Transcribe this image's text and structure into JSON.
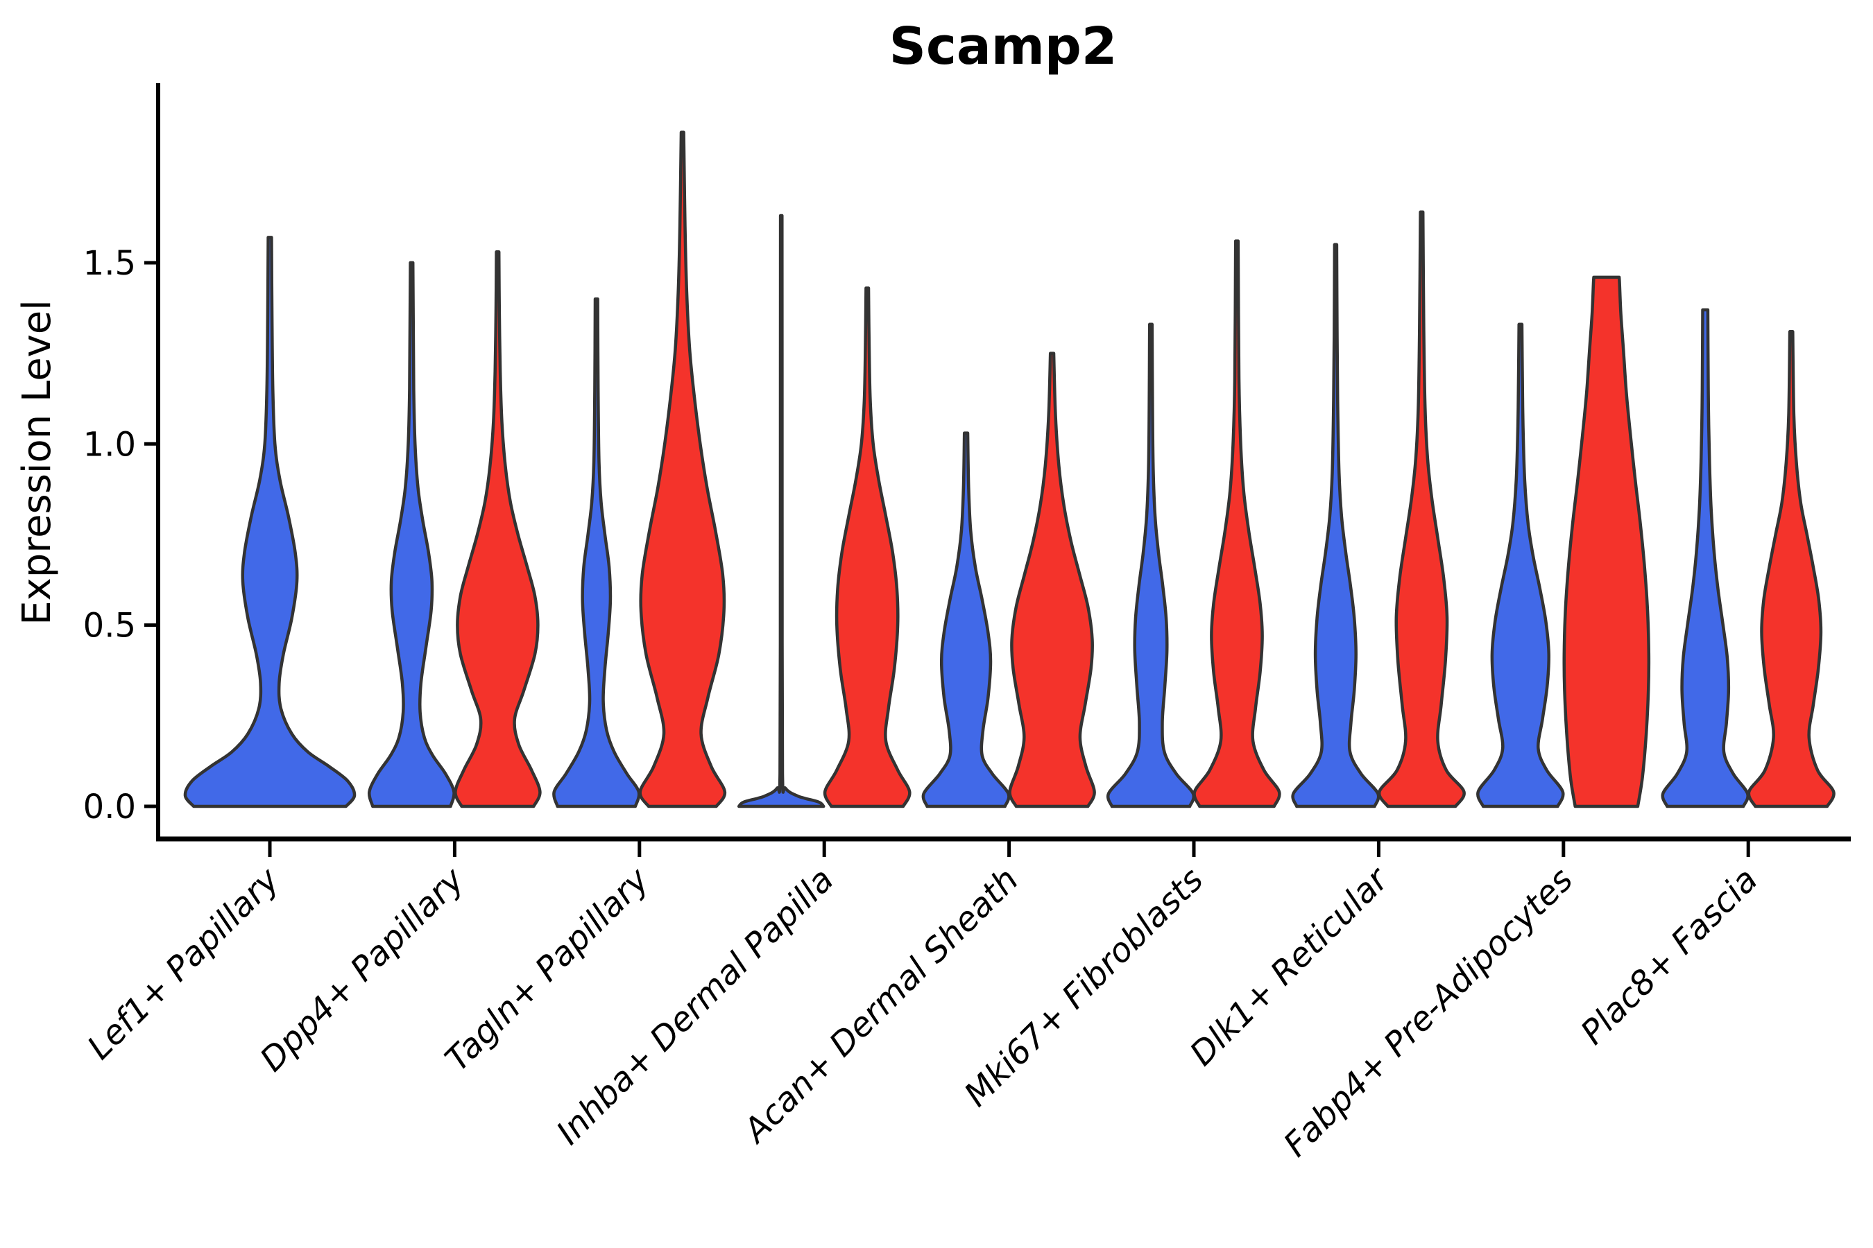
{
  "chart_data": {
    "type": "violin",
    "title": "Scamp2",
    "ylabel": "Expression Level",
    "xlabel": "",
    "ylim": [
      -0.09,
      1.99
    ],
    "yticks": [
      0.0,
      0.5,
      1.0,
      1.5
    ],
    "ytick_labels": [
      "0.0",
      "0.5",
      "1.0",
      "1.5"
    ],
    "grid": false,
    "legend": "none",
    "categories": [
      "Lef1+ Papillary",
      "Dpp4+ Papillary",
      "Tagln+ Papillary",
      "Inhba+ Dermal Papilla",
      "Acan+ Dermal Sheath",
      "Mki67+ Fibroblasts",
      "Dlk1+ Reticular",
      "Fabp4+ Pre-Adipocytes",
      "Plac8+ Fascia"
    ],
    "colors": {
      "blue": "#4169E8",
      "red": "#F4332B",
      "outline": "#333333"
    },
    "series": [
      {
        "name": "group-blue",
        "color": "#4169E8",
        "max_expression": [
          1.57,
          1.5,
          1.4,
          1.63,
          1.03,
          1.33,
          1.55,
          1.33,
          1.37
        ]
      },
      {
        "name": "group-red",
        "color": "#F4332B",
        "max_expression": [
          null,
          1.53,
          1.86,
          1.43,
          1.25,
          1.56,
          1.64,
          1.46,
          1.31
        ]
      }
    ],
    "violins": [
      {
        "category": 0,
        "group": "blue",
        "side": "single",
        "width_scale": 2,
        "tip": 1.57,
        "blunt": false,
        "profile": [
          [
            0,
            0.9
          ],
          [
            0.03,
            1.0
          ],
          [
            0.07,
            0.92
          ],
          [
            0.11,
            0.7
          ],
          [
            0.15,
            0.45
          ],
          [
            0.2,
            0.26
          ],
          [
            0.27,
            0.13
          ],
          [
            0.34,
            0.11
          ],
          [
            0.42,
            0.16
          ],
          [
            0.52,
            0.26
          ],
          [
            0.62,
            0.32
          ],
          [
            0.7,
            0.3
          ],
          [
            0.8,
            0.22
          ],
          [
            0.9,
            0.12
          ],
          [
            1.0,
            0.06
          ],
          [
            1.15,
            0.035
          ],
          [
            1.35,
            0.025
          ],
          [
            1.57,
            0.02
          ]
        ]
      },
      {
        "category": 1,
        "group": "blue",
        "side": "left",
        "width_scale": 1,
        "tip": 1.5,
        "blunt": false,
        "profile": [
          [
            0,
            0.92
          ],
          [
            0.04,
            1.0
          ],
          [
            0.09,
            0.8
          ],
          [
            0.14,
            0.5
          ],
          [
            0.19,
            0.3
          ],
          [
            0.26,
            0.2
          ],
          [
            0.34,
            0.22
          ],
          [
            0.44,
            0.34
          ],
          [
            0.54,
            0.46
          ],
          [
            0.62,
            0.48
          ],
          [
            0.7,
            0.4
          ],
          [
            0.79,
            0.26
          ],
          [
            0.88,
            0.15
          ],
          [
            1.0,
            0.08
          ],
          [
            1.15,
            0.05
          ],
          [
            1.32,
            0.04
          ],
          [
            1.5,
            0.03
          ]
        ]
      },
      {
        "category": 1,
        "group": "red",
        "side": "right",
        "width_scale": 1,
        "tip": 1.53,
        "blunt": false,
        "profile": [
          [
            0,
            0.85
          ],
          [
            0.04,
            1.0
          ],
          [
            0.1,
            0.8
          ],
          [
            0.17,
            0.5
          ],
          [
            0.24,
            0.4
          ],
          [
            0.32,
            0.62
          ],
          [
            0.42,
            0.88
          ],
          [
            0.5,
            0.95
          ],
          [
            0.58,
            0.88
          ],
          [
            0.66,
            0.7
          ],
          [
            0.75,
            0.48
          ],
          [
            0.84,
            0.3
          ],
          [
            0.94,
            0.18
          ],
          [
            1.06,
            0.1
          ],
          [
            1.2,
            0.06
          ],
          [
            1.37,
            0.04
          ],
          [
            1.53,
            0.03
          ]
        ]
      },
      {
        "category": 2,
        "group": "blue",
        "side": "left",
        "width_scale": 1,
        "tip": 1.4,
        "blunt": false,
        "profile": [
          [
            0,
            0.92
          ],
          [
            0.04,
            1.0
          ],
          [
            0.09,
            0.72
          ],
          [
            0.15,
            0.42
          ],
          [
            0.21,
            0.24
          ],
          [
            0.29,
            0.16
          ],
          [
            0.38,
            0.2
          ],
          [
            0.48,
            0.28
          ],
          [
            0.57,
            0.33
          ],
          [
            0.66,
            0.3
          ],
          [
            0.75,
            0.2
          ],
          [
            0.84,
            0.11
          ],
          [
            0.95,
            0.06
          ],
          [
            1.15,
            0.04
          ],
          [
            1.4,
            0.03
          ]
        ]
      },
      {
        "category": 2,
        "group": "red",
        "side": "right",
        "width_scale": 1,
        "tip": 1.86,
        "blunt": false,
        "profile": [
          [
            0,
            0.8
          ],
          [
            0.04,
            1.0
          ],
          [
            0.11,
            0.68
          ],
          [
            0.2,
            0.44
          ],
          [
            0.3,
            0.6
          ],
          [
            0.42,
            0.86
          ],
          [
            0.54,
            0.98
          ],
          [
            0.64,
            0.95
          ],
          [
            0.76,
            0.78
          ],
          [
            0.88,
            0.58
          ],
          [
            1.0,
            0.42
          ],
          [
            1.13,
            0.28
          ],
          [
            1.26,
            0.17
          ],
          [
            1.42,
            0.1
          ],
          [
            1.6,
            0.06
          ],
          [
            1.86,
            0.03
          ]
        ]
      },
      {
        "category": 3,
        "group": "blue",
        "side": "left",
        "width_scale": 1,
        "tip": 1.63,
        "blunt": false,
        "profile": [
          [
            0,
            1.0
          ],
          [
            0.012,
            0.88
          ],
          [
            0.028,
            0.4
          ],
          [
            0.05,
            0.1
          ],
          [
            0.09,
            0.03
          ],
          [
            0.6,
            0.022
          ],
          [
            1.2,
            0.02
          ],
          [
            1.63,
            0.018
          ]
        ]
      },
      {
        "category": 3,
        "group": "red",
        "side": "right",
        "width_scale": 1,
        "tip": 1.43,
        "blunt": false,
        "profile": [
          [
            0,
            0.85
          ],
          [
            0.04,
            1.0
          ],
          [
            0.1,
            0.72
          ],
          [
            0.18,
            0.44
          ],
          [
            0.27,
            0.5
          ],
          [
            0.38,
            0.64
          ],
          [
            0.5,
            0.72
          ],
          [
            0.6,
            0.7
          ],
          [
            0.7,
            0.6
          ],
          [
            0.8,
            0.44
          ],
          [
            0.9,
            0.27
          ],
          [
            1.0,
            0.14
          ],
          [
            1.12,
            0.07
          ],
          [
            1.27,
            0.045
          ],
          [
            1.43,
            0.03
          ]
        ]
      },
      {
        "category": 4,
        "group": "blue",
        "side": "left",
        "width_scale": 1,
        "tip": 1.03,
        "blunt": false,
        "profile": [
          [
            0,
            0.92
          ],
          [
            0.035,
            1.0
          ],
          [
            0.09,
            0.62
          ],
          [
            0.14,
            0.38
          ],
          [
            0.21,
            0.4
          ],
          [
            0.3,
            0.52
          ],
          [
            0.4,
            0.58
          ],
          [
            0.48,
            0.52
          ],
          [
            0.57,
            0.38
          ],
          [
            0.66,
            0.22
          ],
          [
            0.76,
            0.11
          ],
          [
            0.88,
            0.06
          ],
          [
            1.03,
            0.04
          ]
        ]
      },
      {
        "category": 4,
        "group": "red",
        "side": "right",
        "width_scale": 1,
        "tip": 1.25,
        "blunt": false,
        "profile": [
          [
            0,
            0.85
          ],
          [
            0.04,
            1.0
          ],
          [
            0.11,
            0.8
          ],
          [
            0.19,
            0.66
          ],
          [
            0.28,
            0.78
          ],
          [
            0.38,
            0.92
          ],
          [
            0.46,
            0.95
          ],
          [
            0.55,
            0.85
          ],
          [
            0.64,
            0.65
          ],
          [
            0.73,
            0.45
          ],
          [
            0.83,
            0.28
          ],
          [
            0.94,
            0.16
          ],
          [
            1.08,
            0.08
          ],
          [
            1.25,
            0.04
          ]
        ]
      },
      {
        "category": 5,
        "group": "blue",
        "side": "left",
        "width_scale": 1,
        "tip": 1.33,
        "blunt": false,
        "profile": [
          [
            0,
            0.92
          ],
          [
            0.035,
            1.0
          ],
          [
            0.09,
            0.6
          ],
          [
            0.15,
            0.32
          ],
          [
            0.23,
            0.27
          ],
          [
            0.33,
            0.33
          ],
          [
            0.43,
            0.38
          ],
          [
            0.52,
            0.36
          ],
          [
            0.61,
            0.28
          ],
          [
            0.7,
            0.18
          ],
          [
            0.8,
            0.1
          ],
          [
            0.93,
            0.055
          ],
          [
            1.1,
            0.04
          ],
          [
            1.33,
            0.03
          ]
        ]
      },
      {
        "category": 5,
        "group": "red",
        "side": "right",
        "width_scale": 1,
        "tip": 1.56,
        "blunt": false,
        "profile": [
          [
            0,
            0.88
          ],
          [
            0.04,
            1.0
          ],
          [
            0.1,
            0.64
          ],
          [
            0.18,
            0.38
          ],
          [
            0.27,
            0.44
          ],
          [
            0.37,
            0.55
          ],
          [
            0.47,
            0.6
          ],
          [
            0.56,
            0.55
          ],
          [
            0.66,
            0.42
          ],
          [
            0.76,
            0.28
          ],
          [
            0.87,
            0.16
          ],
          [
            1.0,
            0.09
          ],
          [
            1.18,
            0.05
          ],
          [
            1.56,
            0.03
          ]
        ]
      },
      {
        "category": 6,
        "group": "blue",
        "side": "left",
        "width_scale": 1,
        "tip": 1.55,
        "blunt": false,
        "profile": [
          [
            0,
            0.92
          ],
          [
            0.035,
            1.0
          ],
          [
            0.09,
            0.6
          ],
          [
            0.15,
            0.34
          ],
          [
            0.23,
            0.36
          ],
          [
            0.32,
            0.44
          ],
          [
            0.42,
            0.48
          ],
          [
            0.52,
            0.44
          ],
          [
            0.61,
            0.35
          ],
          [
            0.7,
            0.24
          ],
          [
            0.8,
            0.14
          ],
          [
            0.92,
            0.08
          ],
          [
            1.1,
            0.05
          ],
          [
            1.3,
            0.035
          ],
          [
            1.55,
            0.025
          ]
        ]
      },
      {
        "category": 6,
        "group": "red",
        "side": "right",
        "width_scale": 1,
        "tip": 1.64,
        "blunt": false,
        "profile": [
          [
            0,
            0.8
          ],
          [
            0.04,
            1.0
          ],
          [
            0.1,
            0.58
          ],
          [
            0.18,
            0.38
          ],
          [
            0.28,
            0.46
          ],
          [
            0.4,
            0.56
          ],
          [
            0.52,
            0.6
          ],
          [
            0.63,
            0.52
          ],
          [
            0.74,
            0.38
          ],
          [
            0.85,
            0.24
          ],
          [
            0.96,
            0.14
          ],
          [
            1.1,
            0.08
          ],
          [
            1.32,
            0.05
          ],
          [
            1.64,
            0.03
          ]
        ]
      },
      {
        "category": 7,
        "group": "blue",
        "side": "left",
        "width_scale": 1,
        "tip": 1.33,
        "blunt": false,
        "profile": [
          [
            0,
            0.88
          ],
          [
            0.04,
            1.0
          ],
          [
            0.1,
            0.62
          ],
          [
            0.16,
            0.42
          ],
          [
            0.24,
            0.52
          ],
          [
            0.33,
            0.63
          ],
          [
            0.42,
            0.67
          ],
          [
            0.51,
            0.6
          ],
          [
            0.6,
            0.46
          ],
          [
            0.69,
            0.3
          ],
          [
            0.78,
            0.18
          ],
          [
            0.9,
            0.1
          ],
          [
            1.05,
            0.06
          ],
          [
            1.2,
            0.045
          ],
          [
            1.33,
            0.035
          ]
        ]
      },
      {
        "category": 7,
        "group": "red",
        "side": "right",
        "width_scale": 1,
        "tip": 1.46,
        "blunt": true,
        "profile": [
          [
            0,
            0.74
          ],
          [
            0.08,
            0.85
          ],
          [
            0.2,
            0.94
          ],
          [
            0.32,
            0.99
          ],
          [
            0.42,
            1.0
          ],
          [
            0.54,
            0.97
          ],
          [
            0.66,
            0.9
          ],
          [
            0.78,
            0.8
          ],
          [
            0.9,
            0.68
          ],
          [
            1.02,
            0.57
          ],
          [
            1.14,
            0.47
          ],
          [
            1.26,
            0.4
          ],
          [
            1.36,
            0.34
          ],
          [
            1.44,
            0.31
          ],
          [
            1.46,
            0.3
          ]
        ]
      },
      {
        "category": 8,
        "group": "blue",
        "side": "left",
        "width_scale": 1,
        "tip": 1.37,
        "blunt": true,
        "profile": [
          [
            0,
            0.9
          ],
          [
            0.035,
            1.0
          ],
          [
            0.09,
            0.66
          ],
          [
            0.15,
            0.44
          ],
          [
            0.23,
            0.5
          ],
          [
            0.32,
            0.55
          ],
          [
            0.41,
            0.52
          ],
          [
            0.5,
            0.42
          ],
          [
            0.6,
            0.3
          ],
          [
            0.7,
            0.21
          ],
          [
            0.82,
            0.14
          ],
          [
            0.95,
            0.1
          ],
          [
            1.1,
            0.075
          ],
          [
            1.25,
            0.065
          ],
          [
            1.37,
            0.06
          ]
        ]
      },
      {
        "category": 8,
        "group": "red",
        "side": "right",
        "width_scale": 1,
        "tip": 1.31,
        "blunt": false,
        "profile": [
          [
            0,
            0.85
          ],
          [
            0.04,
            1.0
          ],
          [
            0.1,
            0.62
          ],
          [
            0.19,
            0.42
          ],
          [
            0.28,
            0.52
          ],
          [
            0.38,
            0.64
          ],
          [
            0.48,
            0.7
          ],
          [
            0.57,
            0.65
          ],
          [
            0.66,
            0.52
          ],
          [
            0.75,
            0.37
          ],
          [
            0.84,
            0.22
          ],
          [
            0.95,
            0.12
          ],
          [
            1.08,
            0.06
          ],
          [
            1.31,
            0.035
          ]
        ]
      }
    ]
  }
}
